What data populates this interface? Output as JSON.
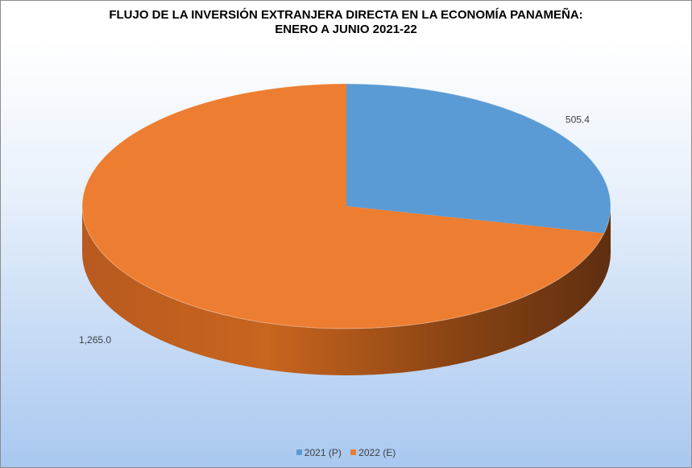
{
  "chart_data": {
    "type": "pie",
    "style": "3d",
    "title": "FLUJO DE LA INVERSIÓN EXTRANJERA DIRECTA EN LA ECONOMÍA PANAMEÑA:",
    "subtitle": "ENERO A JUNIO 2021-22",
    "categories": [
      "2021 (P)",
      "2022 (E)"
    ],
    "values": [
      505.4,
      1265.0
    ],
    "data_labels": [
      "505.4",
      "1,265.0"
    ],
    "colors": [
      "#5b9bd5",
      "#ed7d31"
    ],
    "legend_position": "bottom"
  }
}
